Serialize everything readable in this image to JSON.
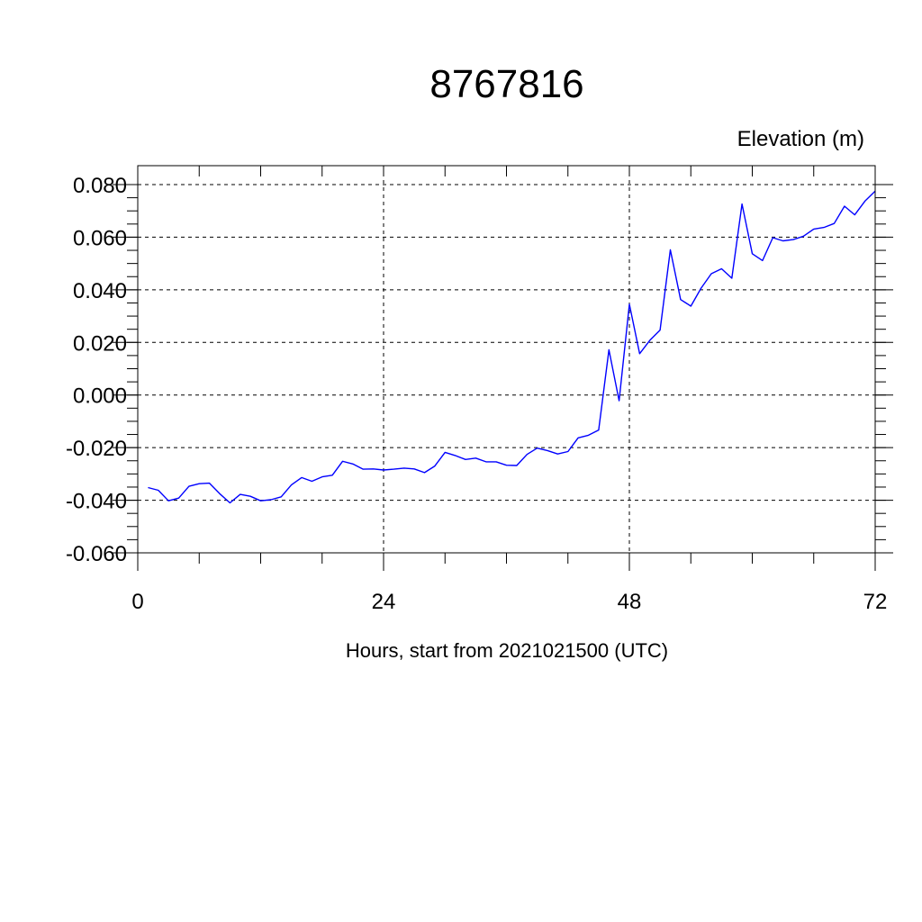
{
  "chart_data": {
    "type": "line",
    "title": "8767816",
    "ylabel": "Elevation (m)",
    "xlabel": "Hours, start from 2021021500 (UTC)",
    "xlim": [
      0,
      72
    ],
    "ylim": [
      -0.06,
      0.08
    ],
    "x_major_ticks": [
      0,
      24,
      48,
      72
    ],
    "x_tick_labels": [
      "0",
      "24",
      "48",
      "72"
    ],
    "y_major_ticks": [
      -0.06,
      -0.04,
      -0.02,
      0.0,
      0.02,
      0.04,
      0.06,
      0.08
    ],
    "y_tick_labels": [
      "-0.060",
      "-0.040",
      "-0.020",
      "0.000",
      "0.020",
      "0.040",
      "0.060",
      "0.080"
    ],
    "grid": true,
    "line_color": "#0000ff",
    "x": [
      1,
      2,
      3,
      4,
      5,
      6,
      7,
      8,
      9,
      10,
      11,
      12,
      13,
      14,
      15,
      16,
      17,
      18,
      19,
      20,
      21,
      22,
      23,
      24,
      25,
      26,
      27,
      28,
      29,
      30,
      31,
      32,
      33,
      34,
      35,
      36,
      37,
      38,
      39,
      40,
      41,
      42,
      43,
      44,
      45,
      46,
      47,
      48,
      49,
      50,
      51,
      52,
      53,
      54,
      55,
      56,
      57,
      58,
      59,
      60,
      61,
      62,
      63,
      64,
      65,
      66,
      67,
      68,
      69,
      70,
      71,
      72
    ],
    "y": [
      -0.0352,
      -0.0362,
      -0.0402,
      -0.0392,
      -0.0347,
      -0.0337,
      -0.0335,
      -0.0375,
      -0.041,
      -0.0378,
      -0.0385,
      -0.0402,
      -0.0398,
      -0.0387,
      -0.0342,
      -0.0314,
      -0.0328,
      -0.0311,
      -0.0305,
      -0.0252,
      -0.0262,
      -0.0282,
      -0.0281,
      -0.0285,
      -0.0282,
      -0.0278,
      -0.0281,
      -0.0295,
      -0.027,
      -0.0218,
      -0.023,
      -0.0245,
      -0.024,
      -0.0254,
      -0.0254,
      -0.0267,
      -0.0268,
      -0.0226,
      -0.0202,
      -0.0211,
      -0.0224,
      -0.0215,
      -0.0163,
      -0.0153,
      -0.0133,
      0.0172,
      -0.0022,
      0.0345,
      0.0157,
      0.0208,
      0.0247,
      0.0552,
      0.0363,
      0.0338,
      0.0406,
      0.0461,
      0.048,
      0.0444,
      0.0726,
      0.0537,
      0.0511,
      0.0598,
      0.0586,
      0.0591,
      0.0604,
      0.0631,
      0.0637,
      0.0652,
      0.0718,
      0.0685,
      0.0737,
      0.0775
    ]
  }
}
